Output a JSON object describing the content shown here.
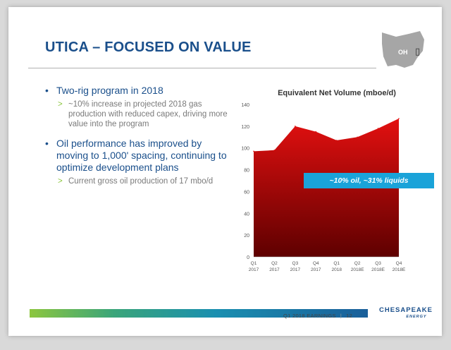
{
  "slide": {
    "title": "UTICA – FOCUSED ON VALUE",
    "state_label": "OH",
    "state_glyph": "▯"
  },
  "bullets": [
    {
      "text": "Two-rig program in 2018",
      "sub": "~10% increase in projected 2018 gas production with reduced capex, driving more value into the program"
    },
    {
      "text": "Oil performance has improved by moving to 1,000' spacing, continuing to optimize development plans",
      "sub": "Current gross oil production of 17 mbo/d"
    }
  ],
  "bullet_glyph": "•",
  "sub_glyph": ">",
  "chart_data": {
    "type": "area",
    "title": "Equivalent Net Volume (mboe/d)",
    "categories": [
      "Q1 2017",
      "Q2 2017",
      "Q3 2017",
      "Q4 2017",
      "Q1 2018",
      "Q2 2018E",
      "Q3 2018E",
      "Q4 2018E"
    ],
    "category_lines": [
      [
        "Q1",
        "2017"
      ],
      [
        "Q2",
        "2017"
      ],
      [
        "Q3",
        "2017"
      ],
      [
        "Q4",
        "2017"
      ],
      [
        "Q1",
        "2018"
      ],
      [
        "Q2",
        "2018E"
      ],
      [
        "Q3",
        "2018E"
      ],
      [
        "Q4",
        "2018E"
      ]
    ],
    "values": [
      97,
      98,
      120,
      115,
      107,
      110,
      118,
      127
    ],
    "ylim": [
      0,
      140
    ],
    "yticks": [
      0,
      20,
      40,
      60,
      80,
      100,
      120,
      140
    ],
    "grid": false,
    "annotation": "~10% oil, ~31% liquids",
    "fill_top": "#e31010",
    "fill_bottom": "#5e0000"
  },
  "footer": {
    "text": "Q1 2018 EARNINGS",
    "sep": "|",
    "page": "12",
    "logo": "CHESAPEAKE",
    "logo_sub": "ENERGY"
  },
  "colors": {
    "title": "#1a4f8b",
    "accent": "#8cc63f",
    "callout": "#1aa3d9"
  }
}
